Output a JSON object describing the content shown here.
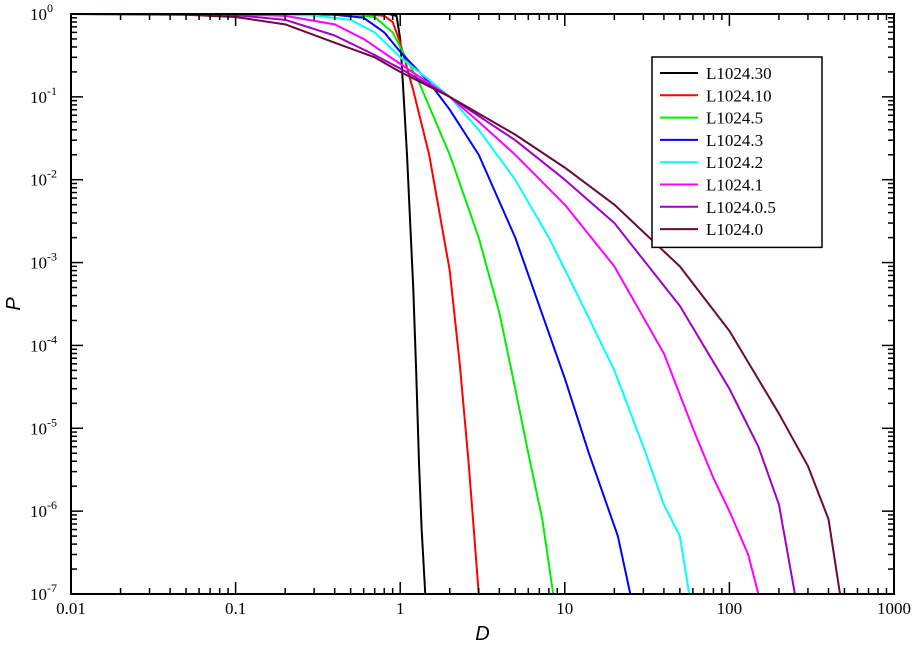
{
  "chart_data": {
    "type": "line",
    "title": "",
    "xlabel": "D",
    "ylabel": "P",
    "xscale": "log",
    "yscale": "log",
    "xlim": [
      0.01,
      1000
    ],
    "ylim": [
      1e-07,
      1
    ],
    "grid": false,
    "legend_position": "top-right",
    "x_tick_labels": [
      {
        "value": 0.01,
        "label": "0.01"
      },
      {
        "value": 0.1,
        "label": "0.1"
      },
      {
        "value": 1,
        "label": "1"
      },
      {
        "value": 10,
        "label": "10"
      },
      {
        "value": 100,
        "label": "100"
      },
      {
        "value": 1000,
        "label": "1000"
      }
    ],
    "y_tick_labels": [
      {
        "value": 1,
        "base": "10",
        "exp": "0"
      },
      {
        "value": 0.1,
        "base": "10",
        "exp": "-1"
      },
      {
        "value": 0.01,
        "base": "10",
        "exp": "-2"
      },
      {
        "value": 0.001,
        "base": "10",
        "exp": "-3"
      },
      {
        "value": 0.0001,
        "base": "10",
        "exp": "-4"
      },
      {
        "value": 1e-05,
        "base": "10",
        "exp": "-5"
      },
      {
        "value": 1e-06,
        "base": "10",
        "exp": "-6"
      },
      {
        "value": 1e-07,
        "base": "10",
        "exp": "-7"
      }
    ],
    "series": [
      {
        "name": "L1024.30",
        "color": "#000000",
        "points": [
          [
            0.01,
            1
          ],
          [
            0.3,
            1
          ],
          [
            0.7,
            1
          ],
          [
            0.85,
            0.999
          ],
          [
            0.95,
            0.95
          ],
          [
            1.0,
            0.5
          ],
          [
            1.05,
            0.1
          ],
          [
            1.1,
            0.02
          ],
          [
            1.15,
            0.003
          ],
          [
            1.2,
            0.0005
          ],
          [
            1.25,
            5e-05
          ],
          [
            1.3,
            4e-06
          ],
          [
            1.35,
            6e-07
          ],
          [
            1.42,
            1e-07
          ]
        ]
      },
      {
        "name": "L1024.10",
        "color": "#ff0000",
        "points": [
          [
            0.01,
            1
          ],
          [
            0.3,
            1
          ],
          [
            0.6,
            0.995
          ],
          [
            0.8,
            0.95
          ],
          [
            0.9,
            0.8
          ],
          [
            1,
            0.45
          ],
          [
            1.2,
            0.12
          ],
          [
            1.5,
            0.02
          ],
          [
            2,
            0.0008
          ],
          [
            2.3,
            6e-05
          ],
          [
            2.6,
            4e-06
          ],
          [
            2.8,
            6e-07
          ],
          [
            3,
            1e-07
          ]
        ]
      },
      {
        "name": "L1024.5",
        "color": "#00ee00",
        "points": [
          [
            0.01,
            1
          ],
          [
            0.2,
            1
          ],
          [
            0.5,
            0.99
          ],
          [
            0.7,
            0.92
          ],
          [
            0.9,
            0.6
          ],
          [
            1,
            0.4
          ],
          [
            1.3,
            0.15
          ],
          [
            2,
            0.02
          ],
          [
            3,
            0.002
          ],
          [
            4,
            0.00025
          ],
          [
            5,
            3e-05
          ],
          [
            6,
            5e-06
          ],
          [
            7.3,
            8e-07
          ],
          [
            8.5,
            1e-07
          ]
        ]
      },
      {
        "name": "L1024.3",
        "color": "#0000ff",
        "points": [
          [
            0.01,
            1
          ],
          [
            0.2,
            0.999
          ],
          [
            0.4,
            0.98
          ],
          [
            0.6,
            0.9
          ],
          [
            0.8,
            0.6
          ],
          [
            1,
            0.35
          ],
          [
            1.5,
            0.15
          ],
          [
            2,
            0.07
          ],
          [
            3,
            0.02
          ],
          [
            5,
            0.002
          ],
          [
            7,
            0.0003
          ],
          [
            10,
            4e-05
          ],
          [
            14,
            5e-06
          ],
          [
            18,
            1.2e-06
          ],
          [
            21,
            5e-07
          ],
          [
            25,
            1e-07
          ]
        ]
      },
      {
        "name": "L1024.2",
        "color": "#00ffff",
        "points": [
          [
            0.01,
            1
          ],
          [
            0.1,
            0.998
          ],
          [
            0.3,
            0.96
          ],
          [
            0.5,
            0.85
          ],
          [
            0.7,
            0.6
          ],
          [
            1,
            0.3
          ],
          [
            1.5,
            0.16
          ],
          [
            2,
            0.1
          ],
          [
            3,
            0.04
          ],
          [
            5,
            0.01
          ],
          [
            8,
            0.002
          ],
          [
            12,
            0.0004
          ],
          [
            20,
            5e-05
          ],
          [
            30,
            6e-06
          ],
          [
            40,
            1.2e-06
          ],
          [
            50,
            5e-07
          ],
          [
            57,
            1e-07
          ]
        ]
      },
      {
        "name": "L1024.1",
        "color": "#ff00ff",
        "points": [
          [
            0.01,
            1
          ],
          [
            0.1,
            0.99
          ],
          [
            0.2,
            0.95
          ],
          [
            0.4,
            0.75
          ],
          [
            0.6,
            0.5
          ],
          [
            1,
            0.25
          ],
          [
            2,
            0.1
          ],
          [
            3,
            0.05
          ],
          [
            5,
            0.02
          ],
          [
            10,
            0.005
          ],
          [
            20,
            0.0009
          ],
          [
            40,
            8e-05
          ],
          [
            60,
            1e-05
          ],
          [
            80,
            2.5e-06
          ],
          [
            100,
            1e-06
          ],
          [
            130,
            3e-07
          ],
          [
            150,
            1e-07
          ]
        ]
      },
      {
        "name": "L1024.0.5",
        "color": "#a000c8",
        "points": [
          [
            0.01,
            1
          ],
          [
            0.05,
            0.995
          ],
          [
            0.1,
            0.97
          ],
          [
            0.2,
            0.85
          ],
          [
            0.4,
            0.55
          ],
          [
            0.7,
            0.32
          ],
          [
            1,
            0.22
          ],
          [
            2,
            0.1
          ],
          [
            5,
            0.03
          ],
          [
            10,
            0.01
          ],
          [
            20,
            0.003
          ],
          [
            50,
            0.0003
          ],
          [
            100,
            3e-05
          ],
          [
            150,
            6e-06
          ],
          [
            200,
            1.2e-06
          ],
          [
            250,
            1e-07
          ]
        ]
      },
      {
        "name": "L1024.0",
        "color": "#6b0a3a",
        "points": [
          [
            0.01,
            1
          ],
          [
            0.05,
            0.98
          ],
          [
            0.1,
            0.92
          ],
          [
            0.2,
            0.75
          ],
          [
            0.4,
            0.45
          ],
          [
            0.7,
            0.3
          ],
          [
            1,
            0.2
          ],
          [
            2,
            0.1
          ],
          [
            5,
            0.035
          ],
          [
            10,
            0.014
          ],
          [
            20,
            0.005
          ],
          [
            50,
            0.0009
          ],
          [
            100,
            0.00015
          ],
          [
            200,
            1.5e-05
          ],
          [
            300,
            3.5e-06
          ],
          [
            400,
            8e-07
          ],
          [
            470,
            1e-07
          ]
        ]
      }
    ]
  }
}
